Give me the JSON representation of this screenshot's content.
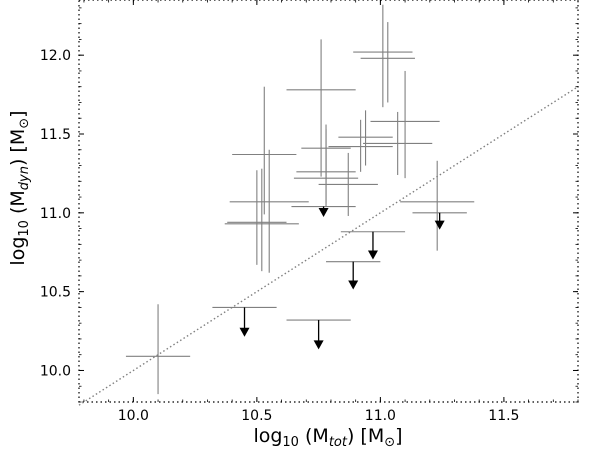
{
  "chart_data": {
    "type": "scatter",
    "title": "",
    "xlabel": {
      "prefix": "log",
      "sub": "10",
      "mid": " (M",
      "msub": "tot",
      "suffix": ") [M",
      "sun": "⊙",
      "end": "]"
    },
    "ylabel": {
      "prefix": "log",
      "sub": "10",
      "mid": " (M",
      "msub": "dyn",
      "suffix": ") [M",
      "sun": "⊙",
      "end": "]"
    },
    "xlim": [
      9.78,
      11.8
    ],
    "ylim": [
      9.8,
      12.35
    ],
    "x_ticks": [
      10.0,
      10.5,
      11.0,
      11.5
    ],
    "x_tick_labels": [
      "10.0",
      "10.5",
      "11.0",
      "11.5"
    ],
    "y_ticks": [
      10.0,
      10.5,
      11.0,
      11.5,
      12.0
    ],
    "y_tick_labels": [
      "10.0",
      "10.5",
      "11.0",
      "11.5",
      "12.0"
    ],
    "one_to_one_line": {
      "x": [
        9.78,
        11.8
      ],
      "y": [
        9.78,
        11.8
      ],
      "style": "dotted",
      "color": "#808080"
    },
    "grid": false,
    "points": [
      {
        "x": 10.1,
        "y": 10.09,
        "xerr": 0.13,
        "yerr_lo": 0.24,
        "yerr_hi": 0.33
      },
      {
        "x": 10.52,
        "y": 10.93,
        "xerr": 0.15,
        "yerr_lo": 0.3,
        "yerr_hi": 0.35
      },
      {
        "x": 10.5,
        "y": 10.94,
        "xerr": 0.12,
        "yerr_lo": 0.27,
        "yerr_hi": 0.33
      },
      {
        "x": 10.53,
        "y": 11.37,
        "xerr": 0.13,
        "yerr_lo": 0.38,
        "yerr_hi": 0.43
      },
      {
        "x": 10.55,
        "y": 11.07,
        "xerr": 0.16,
        "yerr_lo": 0.45,
        "yerr_hi": 0.33
      },
      {
        "x": 10.76,
        "y": 11.78,
        "xerr": 0.14,
        "yerr_lo": 0.55,
        "yerr_hi": 0.32
      },
      {
        "x": 10.78,
        "y": 11.26,
        "xerr": 0.12,
        "yerr_lo": 0.2,
        "yerr_hi": 0.3
      },
      {
        "x": 10.78,
        "y": 11.22,
        "xerr": 0.13,
        "yerr_lo": 0.18,
        "yerr_hi": 0.2
      },
      {
        "x": 10.78,
        "y": 11.41,
        "xerr": 0.1,
        "yerr_lo": 0.2,
        "yerr_hi": 0.12
      },
      {
        "x": 10.87,
        "y": 11.18,
        "xerr": 0.12,
        "yerr_lo": 0.2,
        "yerr_hi": 0.2
      },
      {
        "x": 10.92,
        "y": 11.42,
        "xerr": 0.13,
        "yerr_lo": 0.16,
        "yerr_hi": 0.17
      },
      {
        "x": 10.94,
        "y": 11.48,
        "xerr": 0.11,
        "yerr_lo": 0.18,
        "yerr_hi": 0.17
      },
      {
        "x": 11.01,
        "y": 12.02,
        "xerr": 0.12,
        "yerr_lo": 0.35,
        "yerr_hi": 0.3
      },
      {
        "x": 11.03,
        "y": 11.98,
        "xerr": 0.11,
        "yerr_lo": 0.28,
        "yerr_hi": 0.23
      },
      {
        "x": 11.07,
        "y": 11.44,
        "xerr": 0.14,
        "yerr_lo": 0.2,
        "yerr_hi": 0.2
      },
      {
        "x": 11.1,
        "y": 11.58,
        "xerr": 0.14,
        "yerr_lo": 0.36,
        "yerr_hi": 0.32
      },
      {
        "x": 11.23,
        "y": 11.07,
        "xerr": 0.15,
        "yerr_lo": 0.31,
        "yerr_hi": 0.26
      }
    ],
    "upper_limits": [
      {
        "x": 10.45,
        "y": 10.4,
        "xerr": 0.13,
        "arrow_to": 10.22
      },
      {
        "x": 10.75,
        "y": 10.32,
        "xerr": 0.13,
        "arrow_to": 10.14
      },
      {
        "x": 10.77,
        "y": 11.04,
        "xerr": 0.13,
        "arrow_to": 10.98
      },
      {
        "x": 10.89,
        "y": 10.69,
        "xerr": 0.11,
        "arrow_to": 10.52
      },
      {
        "x": 10.97,
        "y": 10.88,
        "xerr": 0.13,
        "arrow_to": 10.71
      },
      {
        "x": 11.24,
        "y": 11.0,
        "xerr": 0.11,
        "arrow_to": 10.9
      }
    ],
    "errorbar_color": "#808080",
    "arrow_color": "#000000"
  }
}
